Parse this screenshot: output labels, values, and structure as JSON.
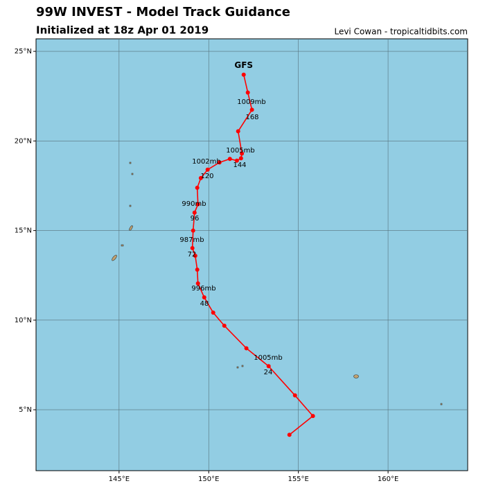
{
  "chart_data": {
    "type": "line",
    "title": "99W INVEST - Model Track Guidance",
    "subtitle": "Initialized at 18z Apr 01 2019",
    "credit": "Levi Cowan - tropicaltidbits.com",
    "x": [
      154.5,
      155.81,
      154.81,
      153.34,
      152.1,
      150.87,
      150.25,
      149.75,
      149.4,
      149.36,
      149.25,
      149.09,
      149.13,
      149.21,
      149.4,
      149.36,
      149.56,
      149.94,
      150.6,
      151.18,
      151.57,
      151.8,
      151.85,
      151.64,
      152.41,
      152.18,
      151.95
    ],
    "series": [
      {
        "name": "GFS",
        "color": "#ff0000",
        "values": [
          3.6,
          4.65,
          5.8,
          7.43,
          8.43,
          9.69,
          10.42,
          11.27,
          12.05,
          12.82,
          13.59,
          14.02,
          15.0,
          16.0,
          16.47,
          17.39,
          17.93,
          18.4,
          18.8,
          19.0,
          18.9,
          19.03,
          19.3,
          20.54,
          21.74,
          22.7,
          23.7
        ]
      }
    ],
    "annotations": [
      "1009mb",
      "168",
      "1005mb",
      "144",
      "1002mb",
      "120",
      "990mb",
      "96",
      "987mb",
      "72",
      "996mb",
      "48",
      "1005mb",
      "24"
    ],
    "xlim": [
      140.37,
      164.44
    ],
    "ylim": [
      1.6,
      25.7
    ],
    "xticks": [
      {
        "value": 145,
        "label": "145°E"
      },
      {
        "value": 150,
        "label": "150°E"
      },
      {
        "value": 155,
        "label": "155°E"
      },
      {
        "value": 160,
        "label": "160°E"
      }
    ],
    "yticks": [
      {
        "value": 5,
        "label": "5°N"
      },
      {
        "value": 10,
        "label": "10°N"
      },
      {
        "value": 15,
        "label": "15°N"
      },
      {
        "value": 20,
        "label": "20°N"
      },
      {
        "value": 25,
        "label": "25°N"
      }
    ],
    "grid": true
  }
}
